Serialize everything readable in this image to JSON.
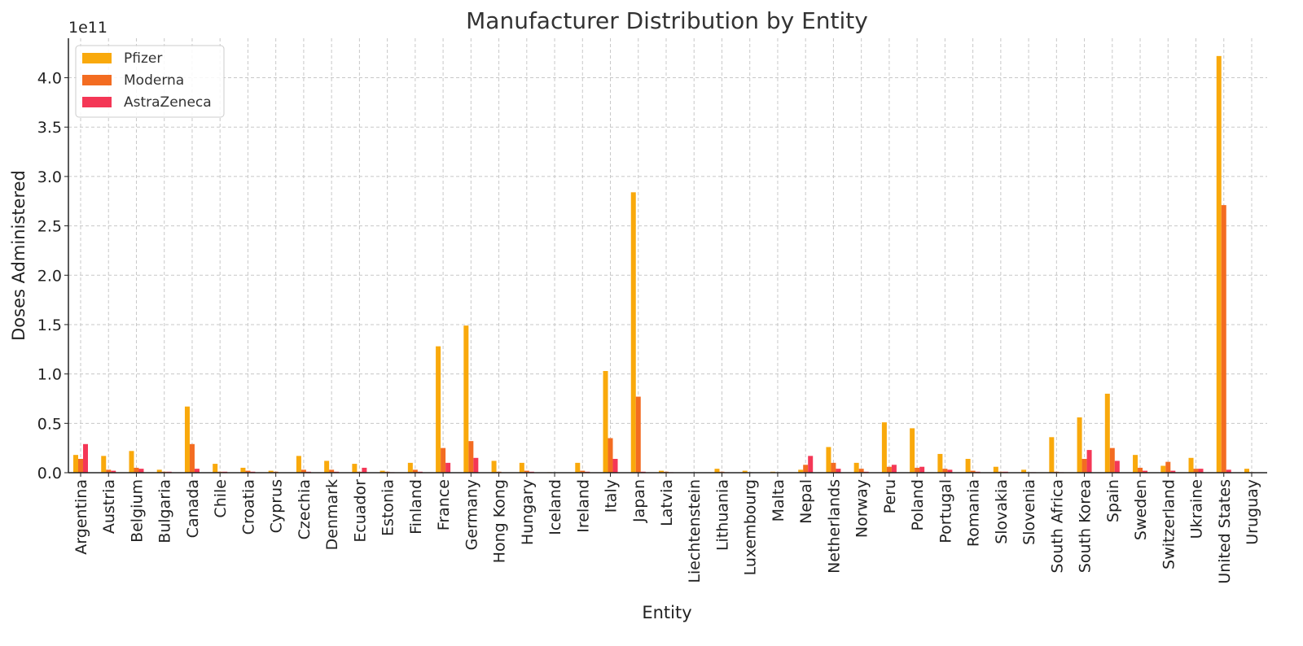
{
  "chart_data": {
    "type": "bar",
    "title": "Manufacturer Distribution by Entity",
    "xlabel": "Entity",
    "ylabel": "Doses Administered",
    "y_offset_label": "1e11",
    "y_scale": 100000000000,
    "ylim": [
      0,
      4.4
    ],
    "yticks": [
      "0.0",
      "0.5",
      "1.0",
      "1.5",
      "2.0",
      "2.5",
      "3.0",
      "3.5",
      "4.0"
    ],
    "grid": true,
    "legend_position": "top-left",
    "categories": [
      "Argentina",
      "Austria",
      "Belgium",
      "Bulgaria",
      "Canada",
      "Chile",
      "Croatia",
      "Cyprus",
      "Czechia",
      "Denmark",
      "Ecuador",
      "Estonia",
      "Finland",
      "France",
      "Germany",
      "Hong Kong",
      "Hungary",
      "Iceland",
      "Ireland",
      "Italy",
      "Japan",
      "Latvia",
      "Liechtenstein",
      "Lithuania",
      "Luxembourg",
      "Malta",
      "Nepal",
      "Netherlands",
      "Norway",
      "Peru",
      "Poland",
      "Portugal",
      "Romania",
      "Slovakia",
      "Slovenia",
      "South Africa",
      "South Korea",
      "Spain",
      "Sweden",
      "Switzerland",
      "Ukraine",
      "United States",
      "Uruguay"
    ],
    "series": [
      {
        "name": "Pfizer",
        "color": "#F9A90C",
        "values": [
          0.18,
          0.17,
          0.22,
          0.03,
          0.67,
          0.09,
          0.05,
          0.02,
          0.17,
          0.12,
          0.09,
          0.02,
          0.1,
          1.28,
          1.49,
          0.12,
          0.1,
          0.005,
          0.1,
          1.03,
          2.84,
          0.02,
          0.002,
          0.04,
          0.02,
          0.01,
          0.03,
          0.26,
          0.1,
          0.51,
          0.45,
          0.19,
          0.14,
          0.06,
          0.03,
          0.36,
          0.56,
          0.8,
          0.18,
          0.07,
          0.15,
          4.22,
          0.04
        ]
      },
      {
        "name": "Moderna",
        "color": "#F36C21",
        "values": [
          0.14,
          0.03,
          0.05,
          0.01,
          0.29,
          0.01,
          0.02,
          0.01,
          0.03,
          0.03,
          0.01,
          0.01,
          0.03,
          0.25,
          0.32,
          0.01,
          0.02,
          0.002,
          0.02,
          0.35,
          0.77,
          0.01,
          0.001,
          0.01,
          0.005,
          0.005,
          0.08,
          0.1,
          0.04,
          0.06,
          0.05,
          0.04,
          0.02,
          0.01,
          0.005,
          0.01,
          0.14,
          0.25,
          0.05,
          0.11,
          0.04,
          2.71,
          0.005
        ]
      },
      {
        "name": "AstraZeneca",
        "color": "#F43756",
        "values": [
          0.29,
          0.02,
          0.04,
          0.01,
          0.04,
          0.01,
          0.01,
          0.003,
          0.01,
          0.01,
          0.05,
          0.005,
          0.01,
          0.1,
          0.15,
          0.003,
          0.01,
          0.001,
          0.01,
          0.14,
          0.01,
          0.005,
          0.0,
          0.005,
          0.002,
          0.001,
          0.17,
          0.04,
          0.01,
          0.08,
          0.06,
          0.03,
          0.01,
          0.01,
          0.005,
          0.005,
          0.23,
          0.12,
          0.02,
          0.02,
          0.04,
          0.03,
          0.002
        ]
      }
    ]
  }
}
